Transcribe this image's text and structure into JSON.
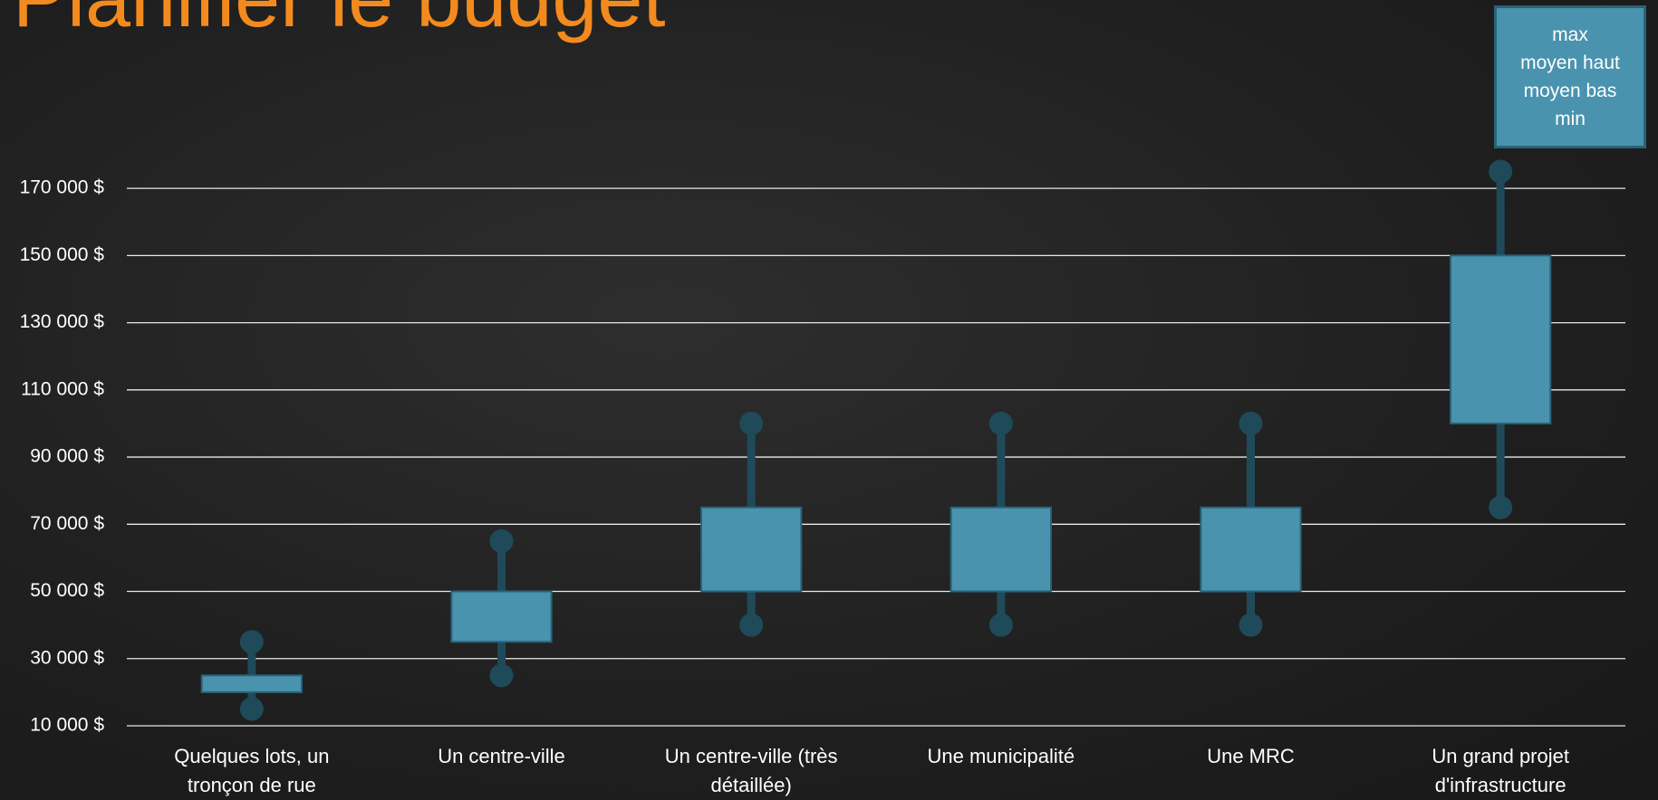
{
  "chart_data": {
    "type": "box",
    "title": "Planifier le budget",
    "categories": [
      "Quelques lots, un tronçon de rue",
      "Un centre-ville",
      "Un centre-ville (très détaillée)",
      "Une municipalité",
      "Une MRC",
      "Un grand projet d'infrastructure"
    ],
    "series": [
      {
        "name": "max",
        "color": "#1f4a5a",
        "values": [
          35000,
          65000,
          100000,
          100000,
          100000,
          175000
        ]
      },
      {
        "name": "moyen haut",
        "color": "#4a93ae",
        "values": [
          25000,
          50000,
          75000,
          75000,
          75000,
          150000
        ]
      },
      {
        "name": "moyen bas",
        "color": "#4a93ae",
        "values": [
          20000,
          35000,
          50000,
          50000,
          50000,
          100000
        ]
      },
      {
        "name": "min",
        "color": "#1f4a5a",
        "values": [
          15000,
          25000,
          40000,
          40000,
          40000,
          75000
        ]
      }
    ],
    "ylim": [
      10000,
      180000
    ],
    "yticks": [
      {
        "value": 10000,
        "label": "10 000 $"
      },
      {
        "value": 30000,
        "label": "30 000 $"
      },
      {
        "value": 50000,
        "label": "50 000 $"
      },
      {
        "value": 70000,
        "label": "70 000 $"
      },
      {
        "value": 90000,
        "label": "90 000 $"
      },
      {
        "value": 110000,
        "label": "110 000 $"
      },
      {
        "value": 130000,
        "label": "130 000 $"
      },
      {
        "value": 150000,
        "label": "150 000 $"
      },
      {
        "value": 170000,
        "label": "170 000 $"
      }
    ],
    "grid": true
  }
}
